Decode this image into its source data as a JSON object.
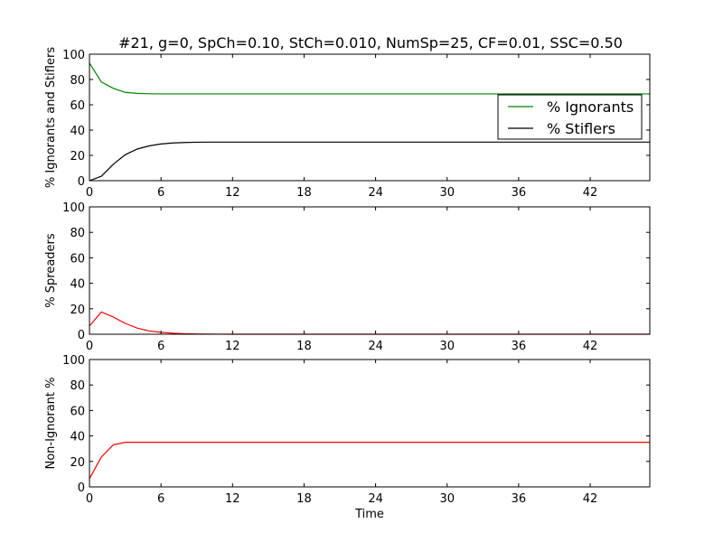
{
  "title": "#21, g=0, SpCh=0.10, StCh=0.010, NumSp=25, CF=0.01, SSC=0.50",
  "chart_data": [
    {
      "type": "line",
      "ylabel": "% Ignorants and Stiflers",
      "xlabel": "",
      "xlim": [
        0,
        47
      ],
      "ylim": [
        0,
        100
      ],
      "xticks": [
        "0",
        "6",
        "12",
        "18",
        "24",
        "30",
        "36",
        "42"
      ],
      "yticks": [
        "0",
        "20",
        "40",
        "60",
        "80",
        "100"
      ],
      "legend": "right",
      "series": [
        {
          "name": "% Ignorants",
          "color": "#008000",
          "x": [
            0,
            1,
            2,
            3,
            4,
            5,
            6,
            7,
            8,
            9,
            10,
            12,
            18,
            24,
            30,
            36,
            42,
            47
          ],
          "values": [
            93,
            78,
            73,
            69.8,
            69,
            68.7,
            68.6,
            68.6,
            68.6,
            68.6,
            68.6,
            68.6,
            68.6,
            68.6,
            68.6,
            68.6,
            68.6,
            68.6
          ]
        },
        {
          "name": "% Stiflers",
          "color": "#000000",
          "x": [
            0,
            1,
            2,
            3,
            4,
            5,
            6,
            7,
            8,
            9,
            10,
            12,
            18,
            24,
            30,
            36,
            42,
            47
          ],
          "values": [
            0,
            3.5,
            13,
            20.5,
            25,
            27.5,
            29,
            29.8,
            30.2,
            30.4,
            30.5,
            30.5,
            30.5,
            30.5,
            30.5,
            30.5,
            30.5,
            30.5
          ]
        }
      ]
    },
    {
      "type": "line",
      "ylabel": "% Spreaders",
      "xlabel": "",
      "xlim": [
        0,
        47
      ],
      "ylim": [
        0,
        100
      ],
      "xticks": [
        "0",
        "6",
        "12",
        "18",
        "24",
        "30",
        "36",
        "42"
      ],
      "yticks": [
        "0",
        "20",
        "40",
        "60",
        "80",
        "100"
      ],
      "series": [
        {
          "color": "#ff0000",
          "x": [
            0,
            1,
            2,
            3,
            4,
            5,
            6,
            7,
            8,
            9,
            10,
            11,
            12,
            18,
            24,
            30,
            36,
            42,
            47
          ],
          "values": [
            6.5,
            17.5,
            13.5,
            8.5,
            4.8,
            2.6,
            1.5,
            0.8,
            0.4,
            0.2,
            0.1,
            0.05,
            0,
            0,
            0,
            0,
            0,
            0,
            0
          ]
        }
      ]
    },
    {
      "type": "line",
      "ylabel": "Non-Ignorant %",
      "xlabel": "Time",
      "xlim": [
        0,
        47
      ],
      "ylim": [
        0,
        100
      ],
      "xticks": [
        "0",
        "6",
        "12",
        "18",
        "24",
        "30",
        "36",
        "42"
      ],
      "yticks": [
        "0",
        "20",
        "40",
        "60",
        "80",
        "100"
      ],
      "series": [
        {
          "color": "#ff0000",
          "x": [
            0,
            1,
            2,
            3,
            4,
            6,
            12,
            18,
            24,
            30,
            36,
            42,
            47
          ],
          "values": [
            6.5,
            23.5,
            33,
            35,
            35,
            35,
            35,
            35,
            35,
            35,
            35,
            35,
            35
          ]
        }
      ]
    }
  ]
}
